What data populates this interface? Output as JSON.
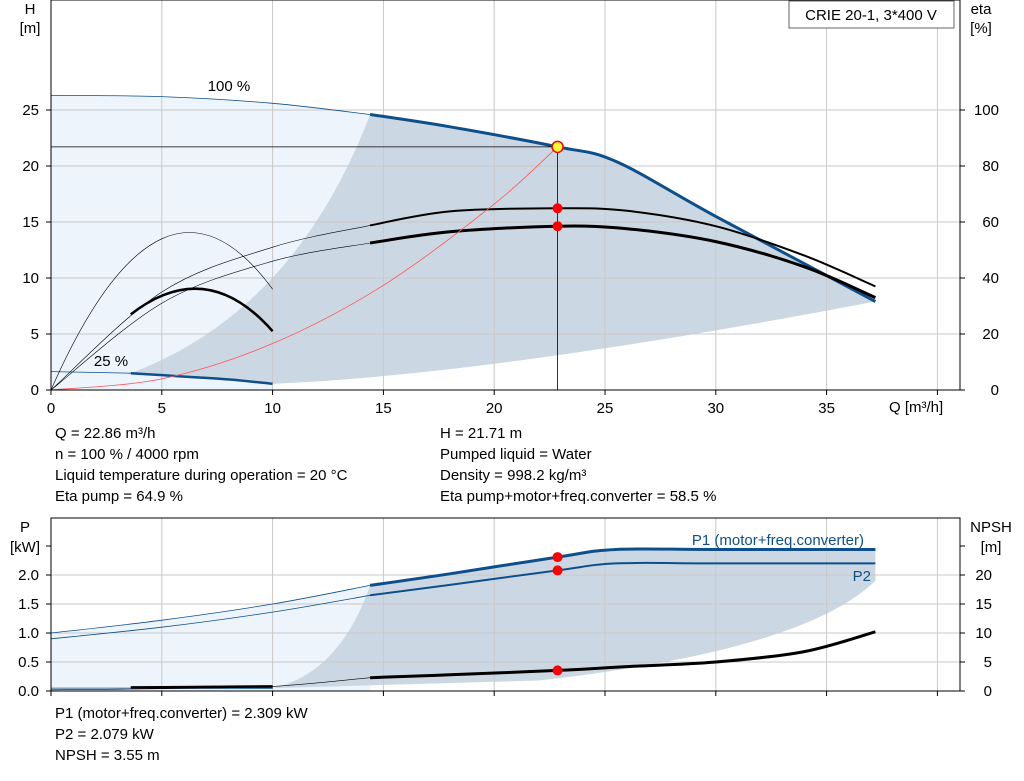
{
  "chart_data": [
    {
      "type": "line",
      "title": "CRIE 20-1, 3*400 V",
      "xlabel": "Q [m³/h]",
      "ylabel": "H",
      "ylabel_unit": "[m]",
      "y2label": "eta",
      "y2label_unit": "[%]",
      "xlim": [
        0,
        40
      ],
      "ylim": [
        0,
        30
      ],
      "y2lim": [
        0,
        120
      ],
      "xticks": [
        "0",
        "5",
        "10",
        "15",
        "20",
        "25",
        "30",
        "35"
      ],
      "yticks": [
        "0",
        "5",
        "10",
        "15",
        "20",
        "25"
      ],
      "y2ticks": [
        "0",
        "20",
        "40",
        "60",
        "80",
        "100"
      ],
      "grid": true,
      "annotations": [
        {
          "text": "100 %",
          "x": 8,
          "y": 27.5
        },
        {
          "text": "25 %",
          "x": 2.7,
          "y": 2.4
        }
      ],
      "series": [
        {
          "name": "H 100 %",
          "x": [
            0,
            5,
            10,
            14.4,
            18,
            22.86,
            25.5,
            30,
            37.2
          ],
          "y": [
            26.3,
            26.2,
            25.6,
            24.6,
            23.5,
            21.71,
            20.4,
            15.5,
            7.9
          ]
        },
        {
          "name": "H 25 %",
          "x": [
            0,
            3.6,
            6,
            8,
            10
          ],
          "y": [
            1.64,
            1.5,
            1.2,
            0.95,
            0.55
          ]
        },
        {
          "name": "Eta pump",
          "x": [
            0,
            5,
            10,
            14.4,
            18,
            22.86,
            26,
            30,
            34,
            37.2
          ],
          "y2": [
            0,
            35,
            51,
            58.8,
            63.8,
            64.9,
            64,
            58.5,
            48,
            37
          ]
        },
        {
          "name": "Eta pump+motor+freq.converter",
          "x": [
            0,
            5,
            10,
            14.4,
            18,
            22.86,
            26,
            30,
            34,
            37.2
          ],
          "y2": [
            0,
            31,
            46,
            52.5,
            56.5,
            58.5,
            57.6,
            53,
            44,
            33
          ]
        },
        {
          "name": "System curve",
          "x": [
            0,
            5,
            10,
            15,
            20,
            22.86
          ],
          "y": [
            0,
            1.0,
            4.15,
            9.35,
            16.6,
            21.71
          ]
        }
      ],
      "operating_point": {
        "q": 22.86,
        "h": 21.71,
        "eta_pump": 64.9,
        "eta_total": 58.5
      }
    },
    {
      "type": "line",
      "xlim": [
        0,
        40
      ],
      "ylim": [
        0,
        2.5
      ],
      "y2lim": [
        0,
        25
      ],
      "ylabel": "P",
      "ylabel_unit": "[kW]",
      "y2label": "NPSH",
      "y2label_unit": "[m]",
      "yticks": [
        "0.0",
        "0.5",
        "1.0",
        "1.5",
        "2.0"
      ],
      "y2ticks": [
        "0",
        "5",
        "10",
        "15",
        "20"
      ],
      "grid": true,
      "series": [
        {
          "name": "P1 (motor+freq.converter)",
          "x": [
            0,
            5,
            10,
            14.4,
            18,
            22.86,
            25.5,
            30,
            37.2
          ],
          "y": [
            1.0,
            1.22,
            1.5,
            1.82,
            2.02,
            2.309,
            2.44,
            2.44,
            2.44
          ]
        },
        {
          "name": "P2",
          "x": [
            0,
            5,
            10,
            14.4,
            18,
            22.86,
            25.5,
            30,
            37.2
          ],
          "y": [
            0.9,
            1.1,
            1.36,
            1.65,
            1.83,
            2.079,
            2.2,
            2.2,
            2.2
          ]
        },
        {
          "name": "NPSH",
          "x": [
            0,
            5,
            10,
            14.4,
            18,
            22.86,
            26,
            30,
            34,
            37.2
          ],
          "y2": [
            0.2,
            0.4,
            0.8,
            2.3,
            2.8,
            3.55,
            4.2,
            5.0,
            6.8,
            10.2
          ]
        }
      ]
    }
  ],
  "info_top": {
    "q": "Q = 22.86 m³/h",
    "n": "n = 100 % / 4000 rpm",
    "temp": "Liquid temperature during operation = 20 °C",
    "eta_pump": "Eta pump = 64.9 %",
    "h": "H = 21.71 m",
    "liquid": "Pumped liquid = Water",
    "density": "Density = 998.2 kg/m³",
    "eta_total": "Eta pump+motor+freq.converter = 58.5 %"
  },
  "info_bottom": {
    "p1": "P1 (motor+freq.converter) = 2.309 kW",
    "p2": "P2 = 2.079 kW",
    "npsh": "NPSH = 3.55 m"
  },
  "colors": {
    "curve_blue": "#0d4f8b",
    "range_light": "#edf4fc",
    "range_dark": "#cbd8e4",
    "grid": "#c8c8c8",
    "marker_red": "#ff0000",
    "marker_yellow": "#ffff33",
    "system_curve": "#ff5555"
  }
}
